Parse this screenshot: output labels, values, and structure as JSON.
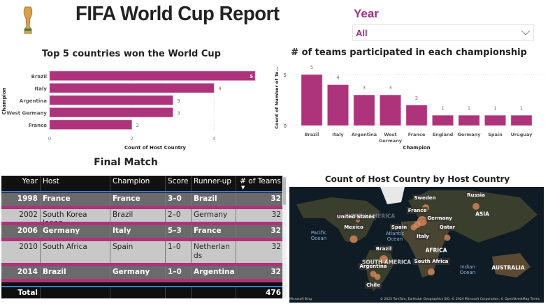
{
  "header": {
    "title": "FIFA World Cup Report",
    "logo": "world-cup-trophy-icon"
  },
  "filter": {
    "label": "Year",
    "value": "All",
    "icon": "chevron-down-icon"
  },
  "colors": {
    "accent": "#ad337b",
    "header_bg": "#0f0f0f"
  },
  "chart_data": [
    {
      "type": "bar",
      "orientation": "horizontal",
      "title": "Top 5 countries won the World Cup",
      "xlabel": "Count of Host Country",
      "ylabel": "Champion",
      "categories": [
        "Brazil",
        "Italy",
        "Argentina",
        "West Germany",
        "France"
      ],
      "values": [
        5,
        4,
        3,
        3,
        2
      ],
      "xticks": [
        "0",
        "2",
        "4"
      ],
      "xlim": [
        0,
        5
      ],
      "color": "#ad337b",
      "grid": true
    },
    {
      "type": "bar",
      "orientation": "vertical",
      "title": "# of teams participated in each championship",
      "xlabel": "Champion",
      "ylabel": "Count of Number of Te...",
      "categories": [
        "Brazil",
        "Italy",
        "Argentina",
        "West Germany",
        "France",
        "England",
        "Germany",
        "Spain",
        "Uruguay"
      ],
      "values": [
        5,
        4,
        3,
        3,
        2,
        1,
        1,
        1,
        1
      ],
      "yticks": [
        "0",
        "5"
      ],
      "ylim": [
        0,
        5
      ],
      "color": "#ad337b",
      "grid": true
    }
  ],
  "table": {
    "title": "Final Match",
    "columns": [
      "Year",
      "Host",
      "Champion",
      "Score",
      "Runner-up",
      "# of Teams"
    ],
    "rows": [
      [
        "1998",
        "France",
        "France",
        "3–0",
        "Brazil",
        "32"
      ],
      [
        "2002",
        "South Korea Japan",
        "Brazil",
        "2–0",
        "Germany",
        "32"
      ],
      [
        "2006",
        "Germany",
        "Italy",
        "5–3",
        "France",
        "32"
      ],
      [
        "2010",
        "South Africa",
        "Spain",
        "1–0",
        "Netherlands",
        "32"
      ],
      [
        "2014",
        "Brazil",
        "Germany",
        "1–0",
        "Argentina",
        "32"
      ]
    ],
    "total_label": "Total",
    "total_value": "476"
  },
  "map": {
    "title": "Count of Host Country by Host Country",
    "countries": [
      "Russia",
      "Sweden",
      "France",
      "United States",
      "Germany",
      "Mexico",
      "Spain",
      "Qatar",
      "Italy",
      "Brazil",
      "Argentina",
      "South Africa",
      "Chile"
    ],
    "continents": [
      "NORTH AMERICA",
      "ASIA",
      "AFRICA",
      "SOUTH AMERICA",
      "AUSTRALIA"
    ],
    "oceans": [
      "Pacific Ocean",
      "Atlantic Ocean",
      "Indian Ocean"
    ],
    "attribution": "© 2025 TomTom, Earthstar Geographics SIO, © 2024 Microsoft Corporation, © OpenStreetMap  Terms",
    "provider": "Microsoft Bing"
  }
}
